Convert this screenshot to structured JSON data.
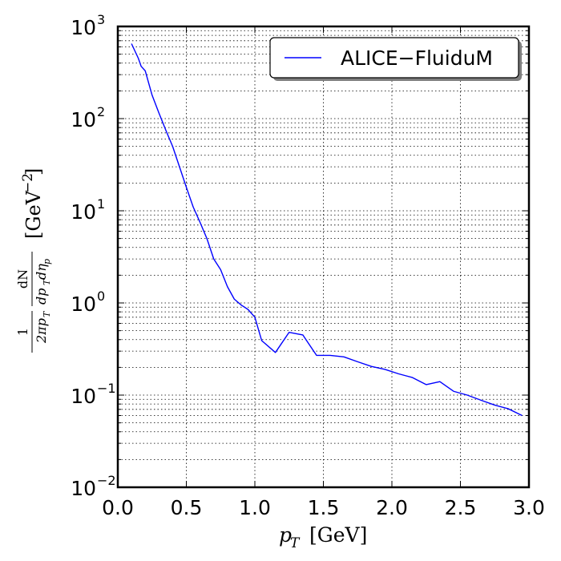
{
  "chart_data": {
    "type": "line",
    "xscale": "linear",
    "yscale": "log",
    "xlim": [
      0.0,
      3.0
    ],
    "ylim": [
      0.01,
      1000
    ],
    "grid": true,
    "legend_position": "top-right",
    "xlabel_var": "p",
    "xlabel_sub": "T",
    "xlabel_unit": "[GeV]",
    "ylabel_prefix_num": "1",
    "ylabel_prefix_den": "2πp",
    "ylabel_frac_num": "dN",
    "ylabel_frac_den": "dp",
    "ylabel_unit": "[GeV",
    "ylabel_unit_exp": "−2",
    "ylabel_unit_close": "]",
    "x_ticks": [
      "0.0",
      "0.5",
      "1.0",
      "1.5",
      "2.0",
      "2.5",
      "3.0"
    ],
    "y_ticks": [
      {
        "base": "10",
        "exp": "−2"
      },
      {
        "base": "10",
        "exp": "−1"
      },
      {
        "base": "10",
        "exp": "0"
      },
      {
        "base": "10",
        "exp": "1"
      },
      {
        "base": "10",
        "exp": "2"
      },
      {
        "base": "10",
        "exp": "3"
      }
    ],
    "series": [
      {
        "name": "ALICE−FluiduM",
        "color": "#0000ff",
        "x": [
          0.1,
          0.15,
          0.17,
          0.2,
          0.25,
          0.3,
          0.35,
          0.4,
          0.45,
          0.5,
          0.55,
          0.6,
          0.65,
          0.7,
          0.75,
          0.8,
          0.85,
          0.9,
          0.95,
          1.0,
          1.05,
          1.15,
          1.25,
          1.35,
          1.45,
          1.55,
          1.65,
          1.75,
          1.85,
          1.95,
          2.05,
          2.15,
          2.25,
          2.35,
          2.45,
          2.55,
          2.65,
          2.75,
          2.85,
          2.95
        ],
        "y": [
          650,
          450,
          370,
          330,
          180,
          115,
          75,
          50,
          30,
          18,
          11,
          7.5,
          5.0,
          3.0,
          2.3,
          1.5,
          1.1,
          0.95,
          0.85,
          0.7,
          0.39,
          0.29,
          0.48,
          0.45,
          0.27,
          0.27,
          0.26,
          0.23,
          0.205,
          0.19,
          0.17,
          0.155,
          0.13,
          0.14,
          0.11,
          0.1,
          0.088,
          0.078,
          0.071,
          0.06
        ]
      }
    ]
  }
}
